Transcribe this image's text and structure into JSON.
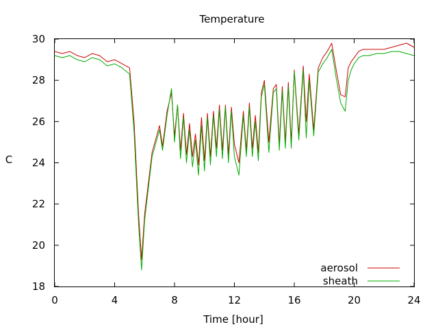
{
  "chart_data": {
    "type": "line",
    "title": "Temperature",
    "xlabel": "Time [hour]",
    "ylabel": "C",
    "xlim": [
      0,
      24
    ],
    "ylim": [
      18,
      30
    ],
    "xticks": [
      0,
      4,
      8,
      12,
      16,
      20,
      24
    ],
    "yticks": [
      18,
      20,
      22,
      24,
      26,
      28,
      30
    ],
    "grid": false,
    "legend_position": "bottom-right",
    "series": [
      {
        "name": "aerosol",
        "color": "#cc0000",
        "x": [
          0,
          0.5,
          1,
          1.5,
          2,
          2.5,
          3,
          3.5,
          4,
          4.5,
          5,
          5.3,
          5.6,
          5.8,
          6,
          6.5,
          7,
          7.2,
          7.5,
          7.8,
          8,
          8.2,
          8.4,
          8.6,
          8.8,
          9,
          9.2,
          9.4,
          9.6,
          9.8,
          10,
          10.2,
          10.4,
          10.6,
          10.8,
          11,
          11.2,
          11.4,
          11.6,
          11.8,
          12,
          12.3,
          12.6,
          12.8,
          13,
          13.2,
          13.4,
          13.6,
          13.8,
          14,
          14.3,
          14.6,
          14.8,
          15,
          15.2,
          15.4,
          15.6,
          15.8,
          16,
          16.3,
          16.6,
          16.8,
          17,
          17.3,
          17.6,
          17.9,
          18.2,
          18.5,
          18.8,
          19.1,
          19.4,
          19.6,
          19.8,
          20,
          20.3,
          20.6,
          21,
          21.5,
          22,
          22.5,
          23,
          23.5,
          24
        ],
        "y": [
          29.4,
          29.3,
          29.4,
          29.2,
          29.1,
          29.3,
          29.2,
          28.9,
          29.0,
          28.8,
          28.6,
          26.0,
          21.5,
          19.3,
          21.5,
          24.5,
          25.8,
          24.8,
          26.5,
          27.4,
          25.3,
          26.8,
          24.6,
          26.4,
          24.4,
          25.9,
          24.3,
          25.4,
          23.9,
          26.2,
          24.1,
          26.4,
          24.3,
          26.5,
          24.7,
          26.8,
          24.6,
          26.8,
          24.4,
          26.7,
          24.9,
          24.0,
          26.5,
          24.6,
          26.9,
          24.7,
          26.3,
          24.5,
          27.4,
          28.0,
          25.0,
          27.6,
          27.8,
          24.9,
          27.7,
          25.0,
          27.9,
          25.0,
          28.5,
          25.4,
          28.7,
          26.0,
          28.3,
          25.6,
          28.6,
          29.1,
          29.4,
          29.8,
          28.5,
          27.3,
          27.2,
          28.6,
          28.9,
          29.1,
          29.4,
          29.5,
          29.5,
          29.5,
          29.5,
          29.6,
          29.7,
          29.8,
          29.6
        ]
      },
      {
        "name": "sheath",
        "color": "#00aa00",
        "x": [
          0,
          0.5,
          1,
          1.5,
          2,
          2.5,
          3,
          3.5,
          4,
          4.5,
          5,
          5.3,
          5.6,
          5.8,
          6,
          6.5,
          7,
          7.2,
          7.5,
          7.8,
          8,
          8.2,
          8.4,
          8.6,
          8.8,
          9,
          9.2,
          9.4,
          9.6,
          9.8,
          10,
          10.2,
          10.4,
          10.6,
          10.8,
          11,
          11.2,
          11.4,
          11.6,
          11.8,
          12,
          12.3,
          12.6,
          12.8,
          13,
          13.2,
          13.4,
          13.6,
          13.8,
          14,
          14.3,
          14.6,
          14.8,
          15,
          15.2,
          15.4,
          15.6,
          15.8,
          16,
          16.3,
          16.6,
          16.8,
          17,
          17.3,
          17.6,
          17.9,
          18.2,
          18.5,
          18.8,
          19.1,
          19.4,
          19.6,
          19.8,
          20,
          20.3,
          20.6,
          21,
          21.5,
          22,
          22.5,
          23,
          23.5,
          24
        ],
        "y": [
          29.2,
          29.1,
          29.2,
          29.0,
          28.9,
          29.1,
          29.0,
          28.7,
          28.8,
          28.6,
          28.3,
          25.5,
          21.0,
          18.8,
          21.2,
          24.3,
          25.6,
          24.6,
          26.3,
          27.6,
          25.0,
          26.8,
          24.2,
          26.2,
          24.0,
          25.6,
          23.8,
          25.1,
          23.4,
          25.8,
          23.6,
          26.2,
          23.9,
          26.3,
          24.3,
          26.6,
          24.2,
          26.7,
          24.0,
          26.5,
          24.3,
          23.4,
          26.3,
          24.3,
          26.7,
          24.3,
          26.0,
          24.1,
          27.2,
          27.8,
          24.5,
          27.4,
          27.6,
          24.6,
          27.5,
          24.7,
          27.7,
          24.7,
          28.4,
          25.1,
          28.5,
          25.2,
          28.0,
          25.3,
          28.4,
          28.8,
          29.1,
          29.5,
          28.1,
          26.9,
          26.5,
          28.0,
          28.5,
          28.8,
          29.1,
          29.2,
          29.2,
          29.3,
          29.3,
          29.4,
          29.4,
          29.3,
          29.2
        ]
      }
    ]
  }
}
